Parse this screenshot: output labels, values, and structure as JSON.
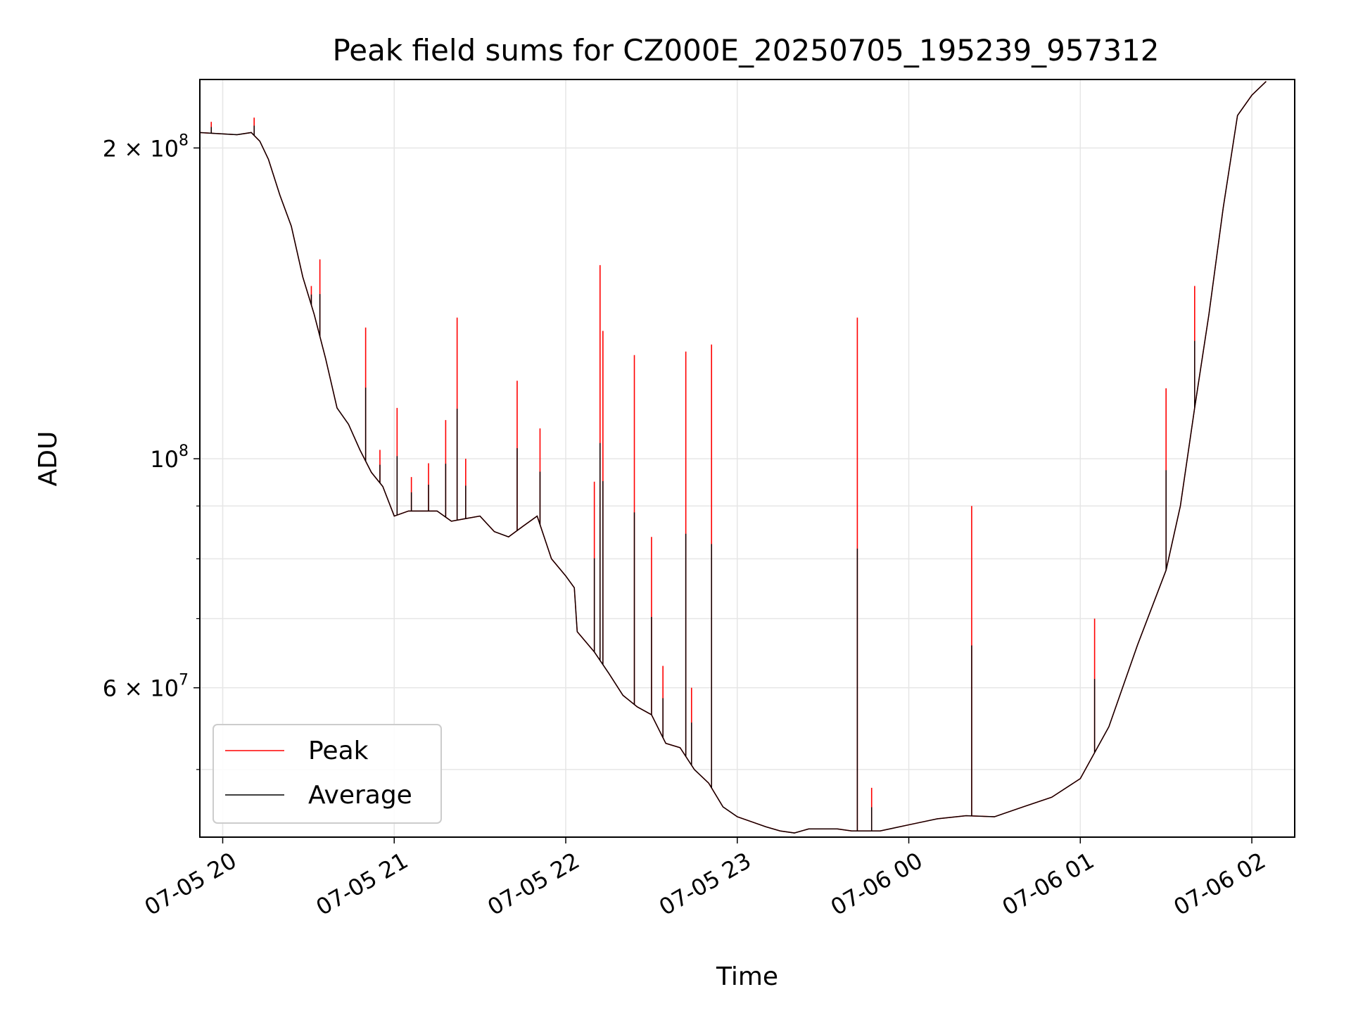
{
  "chart_data": {
    "type": "line",
    "title": "Peak field sums for CZ000E_20250705_195239_957312",
    "xlabel": "Time",
    "ylabel": "ADU",
    "yscale": "log",
    "grid": true,
    "legend_position": "lower-left",
    "xlim": [
      "2025-07-05 19:52",
      "2025-07-06 02:15"
    ],
    "ylim": [
      43000000,
      233000000
    ],
    "x_ticks": [
      {
        "value": "2025-07-05 20:00",
        "label": "07-05 20"
      },
      {
        "value": "2025-07-05 21:00",
        "label": "07-05 21"
      },
      {
        "value": "2025-07-05 22:00",
        "label": "07-05 22"
      },
      {
        "value": "2025-07-05 23:00",
        "label": "07-05 23"
      },
      {
        "value": "2025-07-06 00:00",
        "label": "07-06 00"
      },
      {
        "value": "2025-07-06 01:00",
        "label": "07-06 01"
      },
      {
        "value": "2025-07-06 02:00",
        "label": "07-06 02"
      }
    ],
    "y_ticks": [
      {
        "value": 200000000,
        "mantissa": "2",
        "exponent": "8"
      },
      {
        "value": 100000000,
        "mantissa": "",
        "exponent": "8"
      },
      {
        "value": 60000000,
        "mantissa": "6",
        "exponent": "7"
      }
    ],
    "y_minor_ticks": [
      50000000,
      70000000,
      80000000,
      90000000
    ],
    "series": [
      {
        "name": "Average",
        "color": "#000000",
        "points": [
          [
            "2025-07-05 19:52",
            207000000
          ],
          [
            "2025-07-05 20:05",
            206000000
          ],
          [
            "2025-07-05 20:10",
            207000000
          ],
          [
            "2025-07-05 20:13",
            203000000
          ],
          [
            "2025-07-05 20:16",
            195000000
          ],
          [
            "2025-07-05 20:20",
            180000000
          ],
          [
            "2025-07-05 20:24",
            168000000
          ],
          [
            "2025-07-05 20:28",
            150000000
          ],
          [
            "2025-07-05 20:32",
            138000000
          ],
          [
            "2025-07-05 20:36",
            125000000
          ],
          [
            "2025-07-05 20:40",
            112000000
          ],
          [
            "2025-07-05 20:44",
            108000000
          ],
          [
            "2025-07-05 20:48",
            102000000
          ],
          [
            "2025-07-05 20:52",
            97000000
          ],
          [
            "2025-07-05 20:56",
            94000000
          ],
          [
            "2025-07-05 21:00",
            88000000
          ],
          [
            "2025-07-05 21:05",
            89000000
          ],
          [
            "2025-07-05 21:10",
            89000000
          ],
          [
            "2025-07-05 21:15",
            89000000
          ],
          [
            "2025-07-05 21:20",
            87000000
          ],
          [
            "2025-07-05 21:25",
            87500000
          ],
          [
            "2025-07-05 21:30",
            88000000
          ],
          [
            "2025-07-05 21:35",
            85000000
          ],
          [
            "2025-07-05 21:40",
            84000000
          ],
          [
            "2025-07-05 21:45",
            86000000
          ],
          [
            "2025-07-05 21:50",
            88000000
          ],
          [
            "2025-07-05 21:55",
            80000000
          ],
          [
            "2025-07-05 22:00",
            77000000
          ],
          [
            "2025-07-05 22:03",
            75000000
          ],
          [
            "2025-07-05 22:04",
            68000000
          ],
          [
            "2025-07-05 22:10",
            65000000
          ],
          [
            "2025-07-05 22:15",
            62000000
          ],
          [
            "2025-07-05 22:20",
            59000000
          ],
          [
            "2025-07-05 22:25",
            57500000
          ],
          [
            "2025-07-05 22:30",
            56500000
          ],
          [
            "2025-07-05 22:35",
            53000000
          ],
          [
            "2025-07-05 22:40",
            52500000
          ],
          [
            "2025-07-05 22:45",
            50000000
          ],
          [
            "2025-07-05 22:50",
            48500000
          ],
          [
            "2025-07-05 22:55",
            46000000
          ],
          [
            "2025-07-05 23:00",
            45000000
          ],
          [
            "2025-07-05 23:05",
            44500000
          ],
          [
            "2025-07-05 23:10",
            44000000
          ],
          [
            "2025-07-05 23:15",
            43600000
          ],
          [
            "2025-07-05 23:20",
            43400000
          ],
          [
            "2025-07-05 23:25",
            43800000
          ],
          [
            "2025-07-05 23:35",
            43800000
          ],
          [
            "2025-07-05 23:40",
            43600000
          ],
          [
            "2025-07-05 23:50",
            43600000
          ],
          [
            "2025-07-06 00:00",
            44200000
          ],
          [
            "2025-07-06 00:10",
            44800000
          ],
          [
            "2025-07-06 00:20",
            45100000
          ],
          [
            "2025-07-06 00:30",
            45000000
          ],
          [
            "2025-07-06 00:40",
            46000000
          ],
          [
            "2025-07-06 00:50",
            47000000
          ],
          [
            "2025-07-06 01:00",
            49000000
          ],
          [
            "2025-07-06 01:10",
            55000000
          ],
          [
            "2025-07-06 01:20",
            66000000
          ],
          [
            "2025-07-06 01:30",
            78000000
          ],
          [
            "2025-07-06 01:35",
            90000000
          ],
          [
            "2025-07-06 01:40",
            112000000
          ],
          [
            "2025-07-06 01:45",
            138000000
          ],
          [
            "2025-07-06 01:50",
            175000000
          ],
          [
            "2025-07-06 01:55",
            215000000
          ],
          [
            "2025-07-06 02:00",
            225000000
          ],
          [
            "2025-07-06 02:05",
            232000000
          ]
        ]
      },
      {
        "name": "Peak",
        "color": "#ff0000",
        "spikes": [
          [
            "2025-07-05 19:56",
            212000000
          ],
          [
            "2025-07-05 20:11",
            214000000
          ],
          [
            "2025-07-05 20:31",
            147000000
          ],
          [
            "2025-07-05 20:34",
            156000000
          ],
          [
            "2025-07-05 20:50",
            134000000
          ],
          [
            "2025-07-05 20:55",
            102000000
          ],
          [
            "2025-07-05 21:01",
            112000000
          ],
          [
            "2025-07-05 21:06",
            96000000
          ],
          [
            "2025-07-05 21:12",
            99000000
          ],
          [
            "2025-07-05 21:18",
            109000000
          ],
          [
            "2025-07-05 21:22",
            137000000
          ],
          [
            "2025-07-05 21:25",
            100000000
          ],
          [
            "2025-07-05 21:43",
            119000000
          ],
          [
            "2025-07-05 21:51",
            107000000
          ],
          [
            "2025-07-05 22:10",
            95000000
          ],
          [
            "2025-07-05 22:12",
            154000000
          ],
          [
            "2025-07-05 22:13",
            133000000
          ],
          [
            "2025-07-05 22:24",
            126000000
          ],
          [
            "2025-07-05 22:30",
            84000000
          ],
          [
            "2025-07-05 22:34",
            63000000
          ],
          [
            "2025-07-05 22:42",
            127000000
          ],
          [
            "2025-07-05 22:44",
            60000000
          ],
          [
            "2025-07-05 22:51",
            129000000
          ],
          [
            "2025-07-05 23:42",
            137000000
          ],
          [
            "2025-07-05 23:47",
            48000000
          ],
          [
            "2025-07-06 00:22",
            90000000
          ],
          [
            "2025-07-06 01:05",
            70000000
          ],
          [
            "2025-07-06 01:30",
            117000000
          ],
          [
            "2025-07-06 01:40",
            147000000
          ]
        ]
      }
    ]
  }
}
